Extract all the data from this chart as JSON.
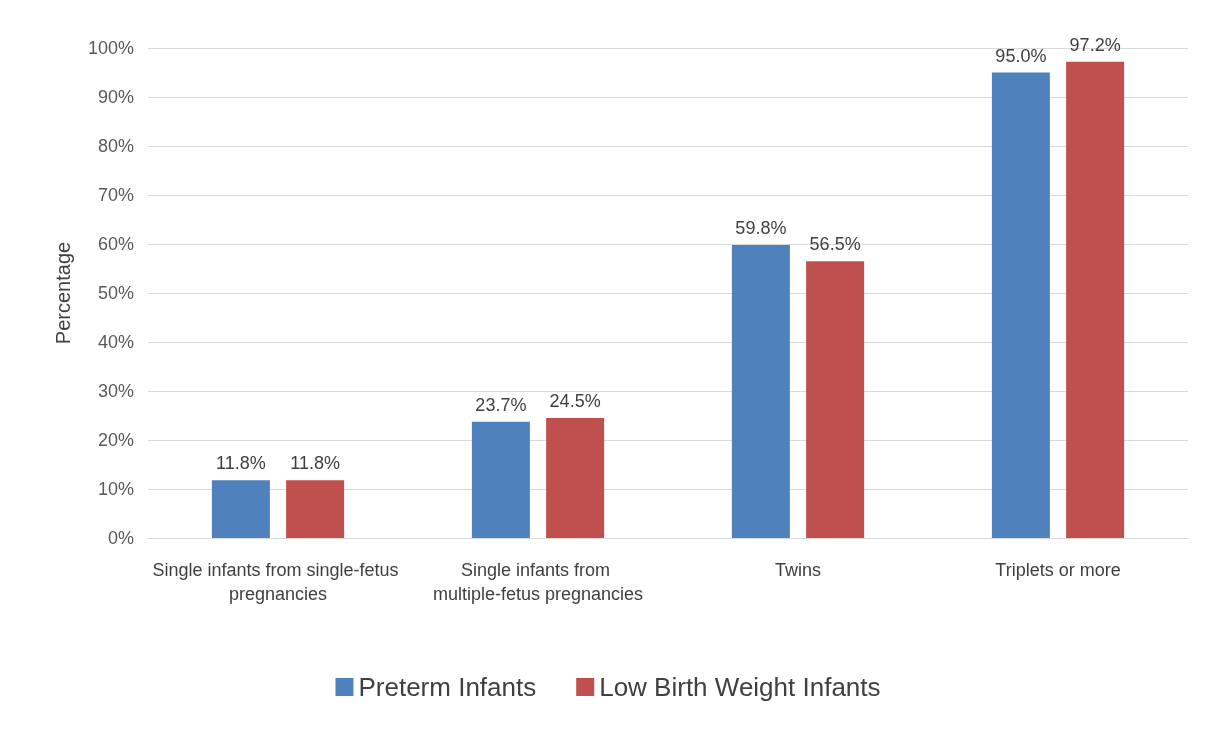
{
  "chart_data": {
    "type": "bar",
    "ylabel": "Percentage",
    "categories": [
      "Single infants from single-fetus pregnancies",
      "Single infants from multiple-fetus pregnancies",
      "Twins",
      "Triplets or more"
    ],
    "series": [
      {
        "name": "Preterm Infants",
        "color": "#4f81bd",
        "values": [
          11.8,
          23.7,
          59.8,
          95.0
        ],
        "value_labels": [
          "11.8%",
          "23.7%",
          "59.8%",
          "95.0%"
        ]
      },
      {
        "name": "Low Birth Weight Infants",
        "color": "#c0504d",
        "values": [
          11.8,
          24.5,
          56.5,
          97.2
        ],
        "value_labels": [
          "11.8%",
          "24.5%",
          "56.5%",
          "97.2%"
        ]
      }
    ],
    "ylim": [
      0,
      100
    ],
    "yticks": [
      {
        "value": 0,
        "label": "0%"
      },
      {
        "value": 10,
        "label": "10%"
      },
      {
        "value": 20,
        "label": "20%"
      },
      {
        "value": 30,
        "label": "30%"
      },
      {
        "value": 40,
        "label": "40%"
      },
      {
        "value": 50,
        "label": "50%"
      },
      {
        "value": 60,
        "label": "60%"
      },
      {
        "value": 70,
        "label": "70%"
      },
      {
        "value": 80,
        "label": "80%"
      },
      {
        "value": 90,
        "label": "90%"
      },
      {
        "value": 100,
        "label": "100%"
      }
    ],
    "grid": "y",
    "legend": "bottom"
  }
}
